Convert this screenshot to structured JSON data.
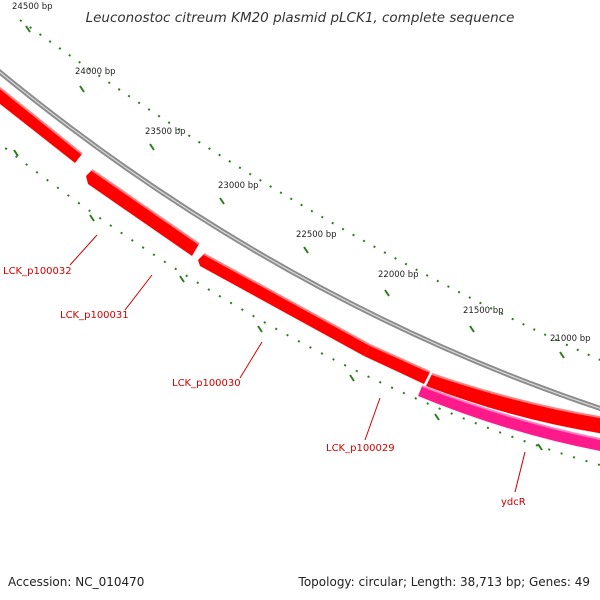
{
  "title": "Leuconostoc citreum KM20 plasmid pLCK1, complete sequence",
  "footer": {
    "accession": "Accession: NC_010470",
    "summary": "Topology: circular; Length: 38,713 bp; Genes: 49"
  },
  "ruler": {
    "labels": [
      "24500 bp",
      "24000 bp",
      "23500 bp",
      "23000 bp",
      "22500 bp",
      "22000 bp",
      "21500 bp",
      "21000 bp"
    ]
  },
  "genes": [
    {
      "label": "LCK_p100032",
      "color": "#ff0000"
    },
    {
      "label": "LCK_p100031",
      "color": "#ff0000"
    },
    {
      "label": "LCK_p100030",
      "color": "#ff0000"
    },
    {
      "label": "LCK_p100029",
      "color": "#ff0000"
    },
    {
      "label": "ydcR",
      "color": "#ff1a8c"
    }
  ],
  "colors": {
    "backbone": "#8c8c8c",
    "ticks": "#2e7d1e",
    "cds": "#ff0000",
    "rna_like": "#ff1a8c",
    "gene_label": "#d40000"
  }
}
